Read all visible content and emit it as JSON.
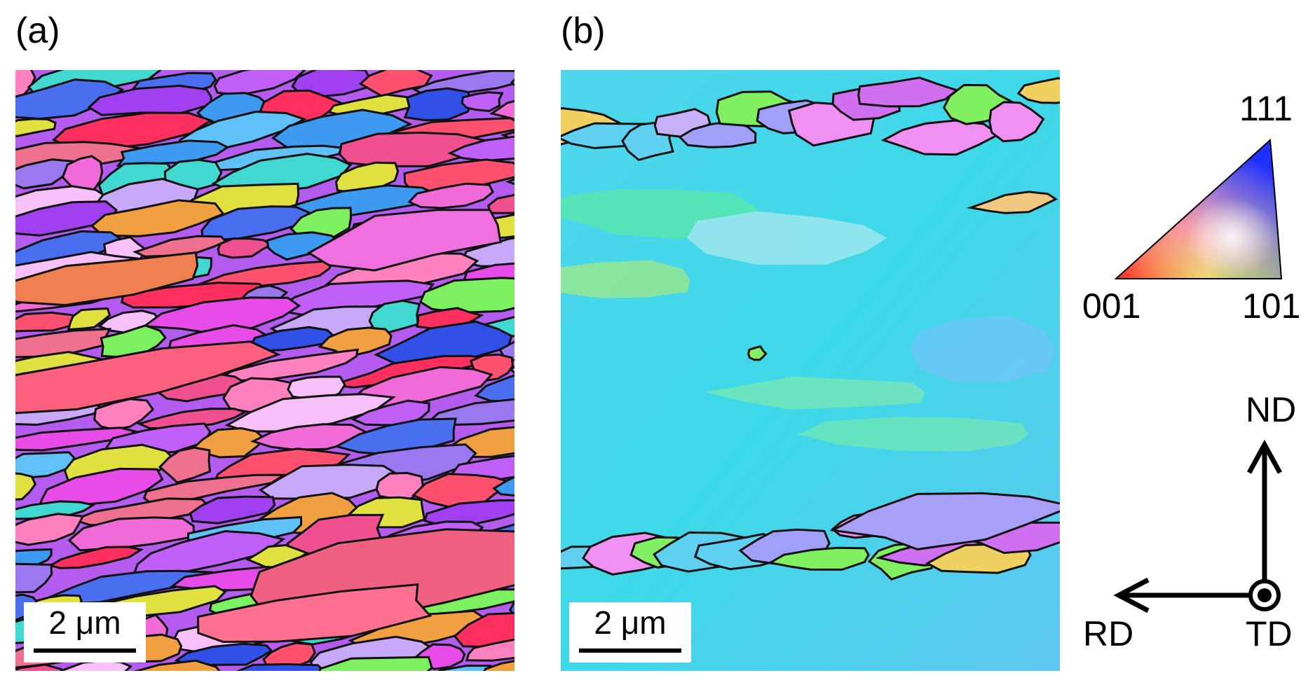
{
  "panels": [
    {
      "label": "(a)",
      "scale_bar": "2 μm",
      "map_type": "mixed-orientation fine grains (red, pink, purple, blue, green)"
    },
    {
      "label": "(b)",
      "scale_bar": "2 μm",
      "map_type": "predominantly cyan/light-blue large grain with elongated grain bands"
    }
  ],
  "ipf_legend": {
    "corners": {
      "top": "111",
      "left": "001",
      "right": "101"
    },
    "colors": {
      "001": "#ff0000",
      "101": "#00ff00",
      "111": "#0000ff"
    }
  },
  "axes_legend": {
    "up": "ND",
    "left": "RD",
    "out_of_plane": "TD"
  },
  "icons": [
    "ipf-color-triangle-icon",
    "arrow-up-icon",
    "arrow-left-icon",
    "out-of-plane-circle-dot-icon"
  ]
}
